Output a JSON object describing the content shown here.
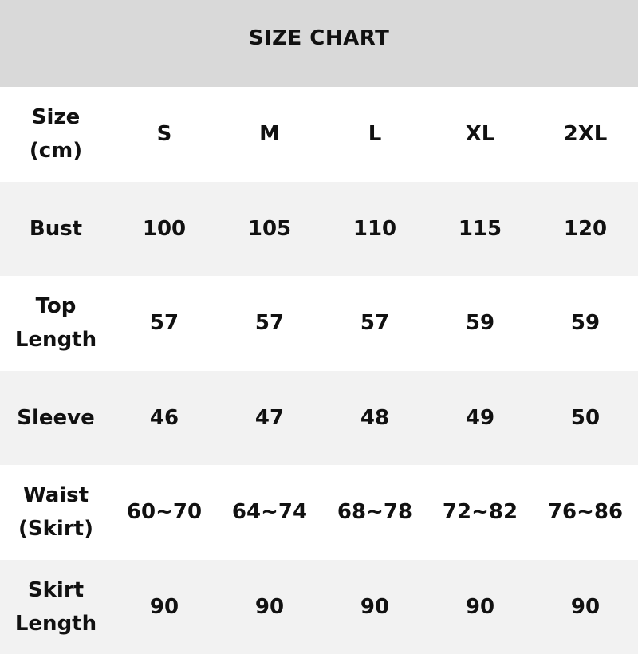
{
  "title": "SIZE CHART",
  "header": {
    "label": "Size\n(cm)",
    "sizes": [
      "S",
      "M",
      "L",
      "XL",
      "2XL"
    ]
  },
  "rows": [
    {
      "label": "Bust",
      "values": [
        "100",
        "105",
        "110",
        "115",
        "120"
      ]
    },
    {
      "label": "Top\nLength",
      "values": [
        "57",
        "57",
        "57",
        "59",
        "59"
      ]
    },
    {
      "label": "Sleeve",
      "values": [
        "46",
        "47",
        "48",
        "49",
        "50"
      ]
    },
    {
      "label": "Waist\n(Skirt)",
      "values": [
        "60~70",
        "64~74",
        "68~78",
        "72~82",
        "76~86"
      ]
    },
    {
      "label": "Skirt\nLength",
      "values": [
        "90",
        "90",
        "90",
        "90",
        "90"
      ]
    }
  ],
  "colors": {
    "title_bg": "#d9d9d9",
    "alt_row_bg": "#f2f2f2"
  }
}
